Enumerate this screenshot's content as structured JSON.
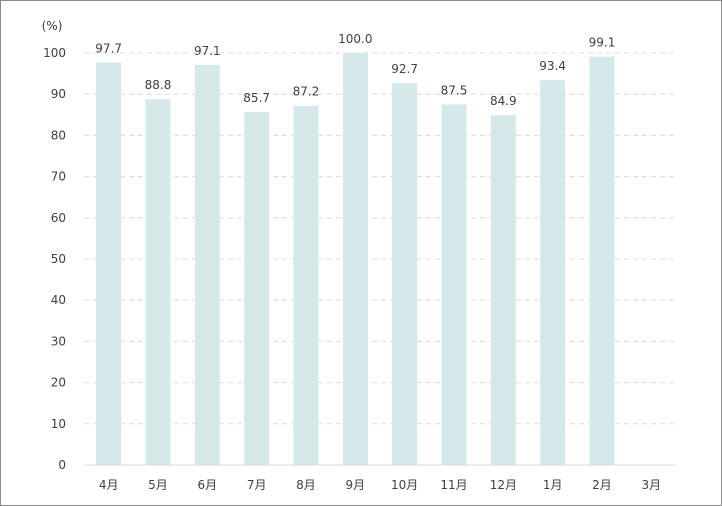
{
  "chart_data": {
    "type": "bar",
    "y_unit": "(%)",
    "categories": [
      "4月",
      "5月",
      "6月",
      "7月",
      "8月",
      "9月",
      "10月",
      "11月",
      "12月",
      "1月",
      "2月",
      "3月"
    ],
    "values": [
      97.7,
      88.8,
      97.1,
      85.7,
      87.2,
      100.0,
      92.7,
      87.5,
      84.9,
      93.4,
      99.1,
      null
    ],
    "data_labels": [
      "97.7",
      "88.8",
      "97.1",
      "85.7",
      "87.2",
      "100.0",
      "92.7",
      "87.5",
      "84.9",
      "93.4",
      "99.1",
      ""
    ],
    "ylim": [
      0,
      100
    ],
    "yticks": [
      0,
      10,
      20,
      30,
      40,
      50,
      60,
      70,
      80,
      90,
      100
    ],
    "grid": true,
    "legend": "none",
    "bar_color": "#d5e9ea"
  }
}
